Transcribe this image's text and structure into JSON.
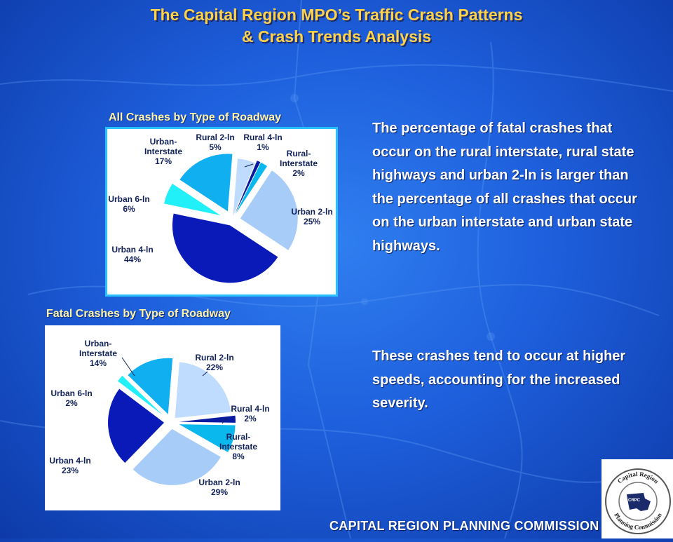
{
  "slide": {
    "title_line1": "The Capital Region MPO’s Traffic Crash Patterns",
    "title_line2": "& Crash Trends Analysis",
    "paragraph1": "The percentage of fatal crashes that occur on the rural interstate, rural state highways and urban 2-ln is larger than the percentage of all crashes that occur on the urban interstate and urban state highways.",
    "paragraph2": "These crashes tend to occur at higher speeds, accounting for the increased severity.",
    "footer": "CAPITAL REGION PLANNING COMMISSION",
    "logo_text_top": "Capital Region",
    "logo_text_bottom": "Planning Commission",
    "logo_initials": "CRPC"
  },
  "colors": {
    "title": "#ffd24a",
    "chart_title": "#fff4a8",
    "rural_2ln": "#bfdcff",
    "rural_4ln": "#0a1aa0",
    "rural_interstate": "#0bb8ee",
    "urban_2ln": "#a8ccf8",
    "urban_4ln": "#0a1ab8",
    "urban_6ln": "#22f0f8",
    "urban_interstate": "#10b0f0"
  },
  "chart_data": [
    {
      "type": "pie",
      "title": "All Crashes by Type of Roadway",
      "slices": [
        {
          "label": "Rural 2-ln",
          "value": 5,
          "value_label": "5%"
        },
        {
          "label": "Rural 4-ln",
          "value": 1,
          "value_label": "1%"
        },
        {
          "label": "Rural-Interstate",
          "value": 2,
          "value_label": "2%"
        },
        {
          "label": "Urban 2-ln",
          "value": 25,
          "value_label": "25%"
        },
        {
          "label": "Urban 4-ln",
          "value": 44,
          "value_label": "44%"
        },
        {
          "label": "Urban 6-ln",
          "value": 6,
          "value_label": "6%"
        },
        {
          "label": "Urban-Interstate",
          "value": 17,
          "value_label": "17%"
        }
      ]
    },
    {
      "type": "pie",
      "title": "Fatal Crashes by Type of Roadway",
      "slices": [
        {
          "label": "Rural 2-ln",
          "value": 22,
          "value_label": "22%"
        },
        {
          "label": "Rural 4-ln",
          "value": 2,
          "value_label": "2%"
        },
        {
          "label": "Rural-Interstate",
          "value": 8,
          "value_label": "8%"
        },
        {
          "label": "Urban 2-ln",
          "value": 29,
          "value_label": "29%"
        },
        {
          "label": "Urban 4-ln",
          "value": 23,
          "value_label": "23%"
        },
        {
          "label": "Urban 6-ln",
          "value": 2,
          "value_label": "2%"
        },
        {
          "label": "Urban-Interstate",
          "value": 14,
          "value_label": "14%"
        }
      ]
    }
  ]
}
